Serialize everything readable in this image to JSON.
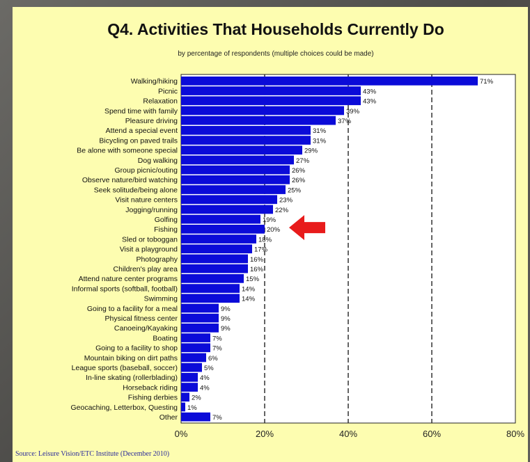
{
  "colors": {
    "panel": "#fdfdb0",
    "bar": "#0b0bd8",
    "arrow": "#e81b1b",
    "source": "#2a2a9a"
  },
  "chart_data": {
    "type": "bar",
    "orientation": "horizontal",
    "title": "Q4. Activities That Households Currently Do",
    "subtitle": "by percentage of respondents (multiple choices could be made)",
    "source": "Source: Leisure Vision/ETC Institute (December 2010)",
    "xlim": [
      0,
      80
    ],
    "xticks": [
      "0%",
      "20%",
      "40%",
      "60%",
      "80%"
    ],
    "xtick_values": [
      0,
      20,
      40,
      60,
      80
    ],
    "grid": "dashed vertical lines at 20%, 40%, 60%",
    "annotation": "red arrow pointing at Fishing",
    "highlight_category": "Fishing",
    "categories": [
      "Walking/hiking",
      "Picnic",
      "Relaxation",
      "Spend time with family",
      "Pleasure driving",
      "Attend a special event",
      "Bicycling on paved trails",
      "Be alone with someone special",
      "Dog walking",
      "Group picnic/outing",
      "Observe nature/bird watching",
      "Seek solitude/being alone",
      "Visit nature centers",
      "Jogging/running",
      "Golfing",
      "Fishing",
      "Sled or toboggan",
      "Visit a playground",
      "Photography",
      "Children's play area",
      "Attend nature center programs",
      "Informal sports (softball, football)",
      "Swimming",
      "Going to a facility for a meal",
      "Physical fitness center",
      "Canoeing/Kayaking",
      "Boating",
      "Going to a facility to shop",
      "Mountain biking on dirt paths",
      "League sports (baseball, soccer)",
      "In-line skating (rollerblading)",
      "Horseback riding",
      "Fishing derbies",
      "Geocaching, Letterbox, Questing",
      "Other"
    ],
    "values": [
      71,
      43,
      43,
      39,
      37,
      31,
      31,
      29,
      27,
      26,
      26,
      25,
      23,
      22,
      19,
      20,
      18,
      17,
      16,
      16,
      15,
      14,
      14,
      9,
      9,
      9,
      7,
      7,
      6,
      5,
      4,
      4,
      2,
      1,
      7
    ],
    "value_labels": [
      "71%",
      "43%",
      "43%",
      "39%",
      "37%",
      "31%",
      "31%",
      "29%",
      "27%",
      "26%",
      "26%",
      "25%",
      "23%",
      "22%",
      "19%",
      "20%",
      "18%",
      "17%",
      "16%",
      "16%",
      "15%",
      "14%",
      "14%",
      "9%",
      "9%",
      "9%",
      "7%",
      "7%",
      "6%",
      "5%",
      "4%",
      "4%",
      "2%",
      "1%",
      "7%"
    ]
  }
}
